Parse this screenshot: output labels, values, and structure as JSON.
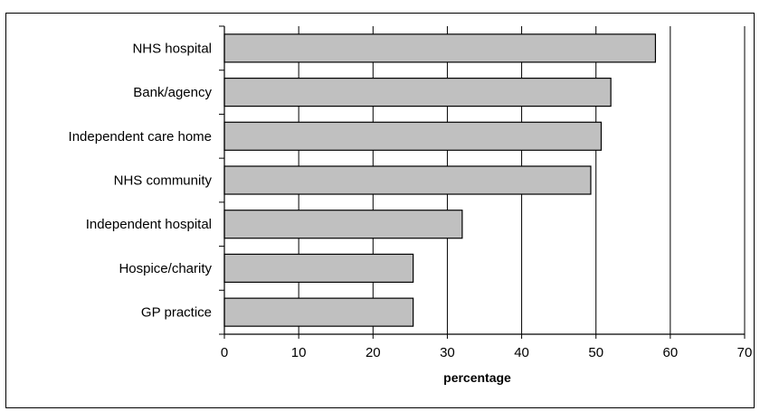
{
  "chart_data": {
    "type": "bar",
    "orientation": "horizontal",
    "categories": [
      "NHS hospital",
      "Bank/agency",
      "Independent care home",
      "NHS community",
      "Independent hospital",
      "Hospice/charity",
      "GP practice"
    ],
    "values": [
      58,
      52,
      50.7,
      49.3,
      32,
      25.4,
      25.4
    ],
    "xlabel": "percentage",
    "ylabel": "",
    "xlim": [
      0,
      70
    ],
    "xticks": [
      "0",
      "10",
      "20",
      "30",
      "40",
      "50",
      "60",
      "70"
    ],
    "grid": "vertical",
    "bar_color": "#c0c0c0",
    "bar_edge_color": "#000000"
  }
}
